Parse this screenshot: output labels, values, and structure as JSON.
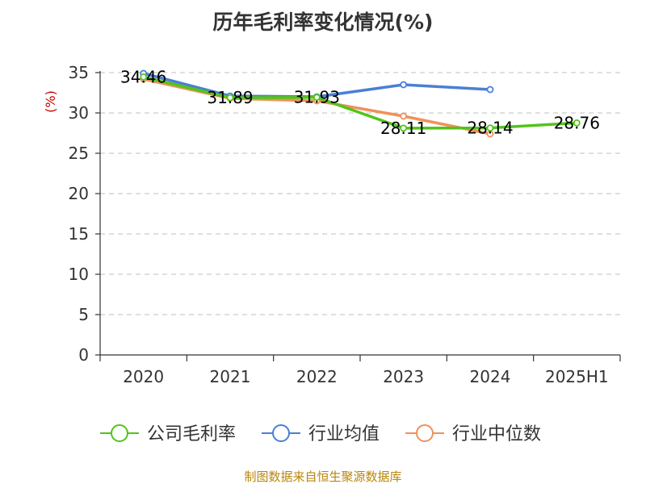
{
  "chart_data": {
    "type": "line",
    "title": "历年毛利率变化情况(%)",
    "ylabel": "(%)",
    "xlabel": "",
    "categories": [
      "2020",
      "2021",
      "2022",
      "2023",
      "2024",
      "2025H1"
    ],
    "ylim": [
      0,
      35
    ],
    "yticks": [
      "0",
      "5",
      "10",
      "15",
      "20",
      "25",
      "30",
      "35"
    ],
    "grid": "horizontal dashed",
    "legend_position": "bottom",
    "series": [
      {
        "name": "公司毛利率",
        "color": "#52c41a",
        "values": [
          34.46,
          31.89,
          31.93,
          28.11,
          28.14,
          28.76
        ],
        "labels": [
          "34.46",
          "31.89",
          "31.93",
          "28.11",
          "28.14",
          "28.76"
        ]
      },
      {
        "name": "行业均值",
        "color": "#4a7fd4",
        "values": [
          34.9,
          32.1,
          32.0,
          33.5,
          32.9,
          null
        ]
      },
      {
        "name": "行业中位数",
        "color": "#f0915a",
        "values": [
          34.2,
          31.8,
          31.5,
          29.6,
          27.4,
          null
        ]
      }
    ]
  },
  "source_text": "制图数据来自恒生聚源数据库"
}
